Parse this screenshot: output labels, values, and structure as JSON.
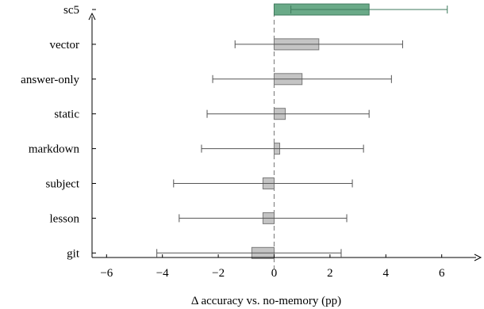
{
  "chart_data": {
    "type": "bar",
    "orientation": "horizontal",
    "xlabel": "Δ accuracy vs. no-memory (pp)",
    "ylabel": "",
    "xlim": [
      -6.6,
      7.4
    ],
    "xticks": [
      -6,
      -4,
      -2,
      0,
      2,
      4,
      6
    ],
    "xtick_labels": [
      "−6",
      "−4",
      "−2",
      "0",
      "2",
      "4",
      "6"
    ],
    "grid": false,
    "zero_line": "dashed",
    "categories": [
      "sc5",
      "vector",
      "answer-only",
      "static",
      "markdown",
      "subject",
      "lesson",
      "git"
    ],
    "values": [
      3.4,
      1.6,
      1.0,
      0.4,
      0.2,
      -0.4,
      -0.4,
      -0.8
    ],
    "error_low": [
      0.6,
      -1.4,
      -2.2,
      -2.4,
      -2.6,
      -3.6,
      -3.4,
      -4.2
    ],
    "error_high": [
      6.2,
      4.6,
      4.2,
      3.4,
      3.2,
      2.8,
      2.6,
      2.4
    ],
    "highlight": [
      "sc5"
    ],
    "colors": {
      "highlight_fill": "#6aaa88",
      "highlight_stroke": "#3e7a5c",
      "bar_fill": "#c4c4c4",
      "bar_stroke": "#7a7a7a",
      "axis": "#000000",
      "zero_line": "#808080"
    }
  }
}
